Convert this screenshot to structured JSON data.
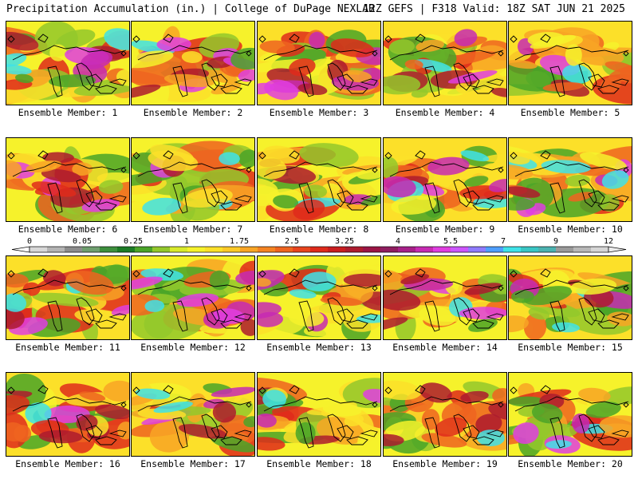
{
  "header": {
    "left": "Precipitation Accumulation (in.) | College of DuPage NEXLAB",
    "right": "12Z GEFS | F318 Valid: 18Z SAT JUN 21 2025"
  },
  "colorbar": {
    "labels": [
      "0",
      "0.05",
      "0.25",
      "1",
      "1.75",
      "2.5",
      "3.25",
      "4",
      "5.5",
      "7",
      "9",
      "12"
    ],
    "colors": [
      "#d8d8d8",
      "#b4b4b4",
      "#8c8c8c",
      "#6f9f6f",
      "#3d8f3d",
      "#1b7b25",
      "#4aa428",
      "#93c82b",
      "#d9ea2b",
      "#f6f22b",
      "#fce029",
      "#fbc927",
      "#f8a525",
      "#f48322",
      "#ee6420",
      "#e8441d",
      "#df2a1b",
      "#c91d1f",
      "#ad1b2e",
      "#9b1545",
      "#8f1d5f",
      "#a72089",
      "#c72ab3",
      "#e03ee0",
      "#cc55ff",
      "#8f7bff",
      "#4e9fff",
      "#3fe2e8",
      "#39c6c4",
      "#4bb2b0",
      "#9a9a9a",
      "#b8b8b8",
      "#d6d6d6"
    ]
  },
  "panels": [
    {
      "label": "Ensemble Member: 1"
    },
    {
      "label": "Ensemble Member: 2"
    },
    {
      "label": "Ensemble Member: 3"
    },
    {
      "label": "Ensemble Member: 4"
    },
    {
      "label": "Ensemble Member: 5"
    },
    {
      "label": "Ensemble Member: 6"
    },
    {
      "label": "Ensemble Member: 7"
    },
    {
      "label": "Ensemble Member: 8"
    },
    {
      "label": "Ensemble Member: 9"
    },
    {
      "label": "Ensemble Member: 10"
    },
    {
      "label": "Ensemble Member: 11"
    },
    {
      "label": "Ensemble Member: 12"
    },
    {
      "label": "Ensemble Member: 13"
    },
    {
      "label": "Ensemble Member: 14"
    },
    {
      "label": "Ensemble Member: 15"
    },
    {
      "label": "Ensemble Member: 16"
    },
    {
      "label": "Ensemble Member: 17"
    },
    {
      "label": "Ensemble Member: 18"
    },
    {
      "label": "Ensemble Member: 19"
    },
    {
      "label": "Ensemble Member: 20"
    }
  ]
}
